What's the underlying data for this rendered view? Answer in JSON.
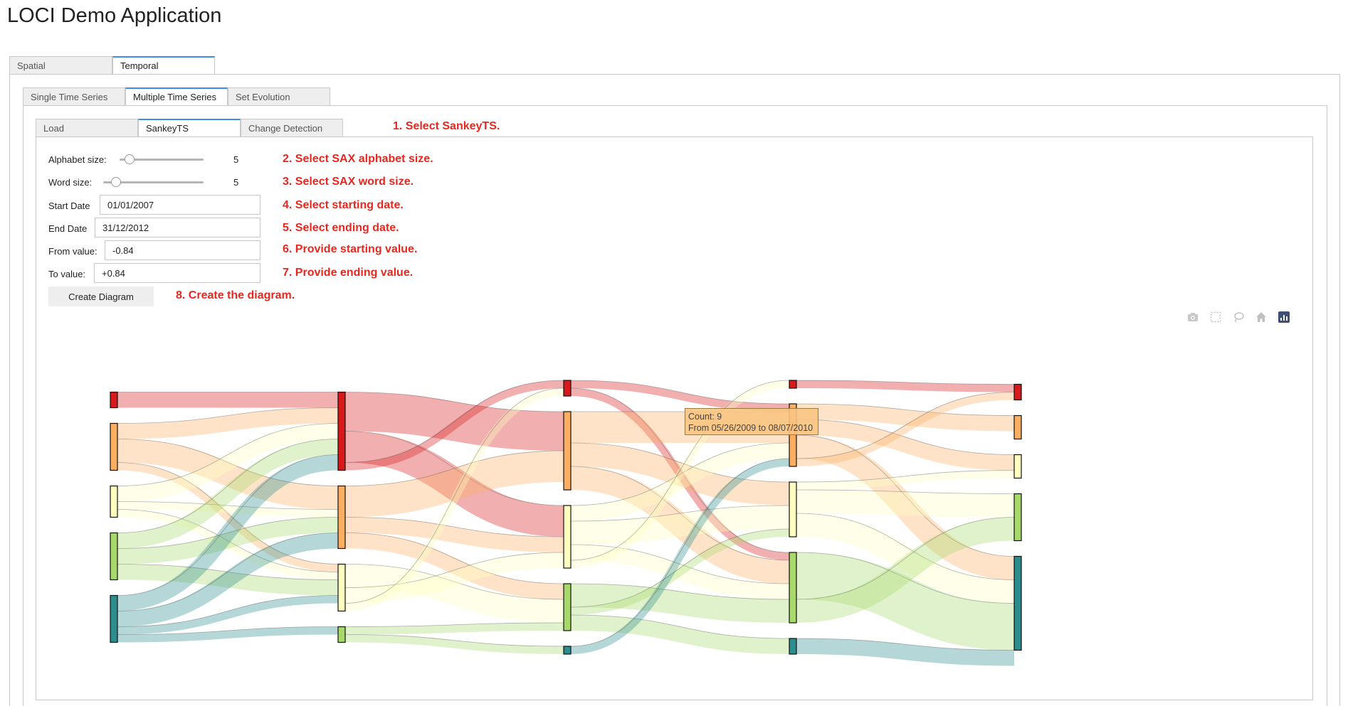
{
  "app": {
    "title": "LOCI Demo Application"
  },
  "top_tabs": [
    {
      "label": "Spatial",
      "active": false
    },
    {
      "label": "Temporal",
      "active": true
    }
  ],
  "temporal_tabs": [
    {
      "label": "Single Time Series",
      "active": false
    },
    {
      "label": "Multiple Time Series",
      "active": true
    },
    {
      "label": "Set Evolution",
      "active": false
    }
  ],
  "mts_tabs": [
    {
      "label": "Load",
      "active": false
    },
    {
      "label": "SankeyTS",
      "active": true
    },
    {
      "label": "Change Detection",
      "active": false
    }
  ],
  "form": {
    "alphabet_label": "Alphabet size:",
    "alphabet_value": "5",
    "word_label": "Word size:",
    "word_value": "5",
    "start_label": "Start Date",
    "start_value": "01/01/2007",
    "end_label": "End Date",
    "end_value": "31/12/2012",
    "from_label": "From value:",
    "from_value": "-0.84",
    "to_label": "To value:",
    "to_value": "+0.84",
    "create_button": "Create Diagram"
  },
  "annotations": {
    "a1": "1. Select SankeyTS.",
    "a2": "2. Select SAX alphabet size.",
    "a3": "3. Select SAX word size.",
    "a4": "4. Select starting date.",
    "a5": "5. Select ending date.",
    "a6": "6. Provide starting value.",
    "a7": "7. Provide ending value.",
    "a8": "8. Create the diagram."
  },
  "modebar": {
    "icons": [
      "camera-icon",
      "box-select-icon",
      "lasso-select-icon",
      "home-icon",
      "plotly-logo-icon"
    ]
  },
  "tooltip": {
    "line1": "Count: 9",
    "line2": "From 05/26/2009 to 08/07/2010"
  },
  "colors": {
    "a": "#d7191c",
    "b": "#fdae61",
    "c": "#ffffbf",
    "d": "#a6d96a",
    "e": "#2b8d8d",
    "accent_tab": "#3a8ee6",
    "annotation": "#e8281e"
  },
  "chart_data": {
    "type": "sankey",
    "symbols": [
      "a",
      "b",
      "c",
      "d",
      "e"
    ],
    "stages": 5,
    "nodes": [
      {
        "id": "0a",
        "stage": 0,
        "symbol": "a",
        "count": 2
      },
      {
        "id": "0b",
        "stage": 0,
        "symbol": "b",
        "count": 6
      },
      {
        "id": "0c",
        "stage": 0,
        "symbol": "c",
        "count": 4
      },
      {
        "id": "0d",
        "stage": 0,
        "symbol": "d",
        "count": 6
      },
      {
        "id": "0e",
        "stage": 0,
        "symbol": "e",
        "count": 6
      },
      {
        "id": "1a",
        "stage": 1,
        "symbol": "a",
        "count": 10
      },
      {
        "id": "1b",
        "stage": 1,
        "symbol": "b",
        "count": 8
      },
      {
        "id": "1c",
        "stage": 1,
        "symbol": "c",
        "count": 6
      },
      {
        "id": "1d",
        "stage": 1,
        "symbol": "d",
        "count": 2
      },
      {
        "id": "2a",
        "stage": 2,
        "symbol": "a",
        "count": 2
      },
      {
        "id": "2b",
        "stage": 2,
        "symbol": "b",
        "count": 10
      },
      {
        "id": "2c",
        "stage": 2,
        "symbol": "c",
        "count": 8
      },
      {
        "id": "2d",
        "stage": 2,
        "symbol": "d",
        "count": 6
      },
      {
        "id": "2e",
        "stage": 2,
        "symbol": "e",
        "count": 1
      },
      {
        "id": "3a",
        "stage": 3,
        "symbol": "a",
        "count": 1
      },
      {
        "id": "3b",
        "stage": 3,
        "symbol": "b",
        "count": 8
      },
      {
        "id": "3c",
        "stage": 3,
        "symbol": "c",
        "count": 7
      },
      {
        "id": "3d",
        "stage": 3,
        "symbol": "d",
        "count": 9
      },
      {
        "id": "3e",
        "stage": 3,
        "symbol": "e",
        "count": 2
      },
      {
        "id": "4a",
        "stage": 4,
        "symbol": "a",
        "count": 2
      },
      {
        "id": "4b",
        "stage": 4,
        "symbol": "b",
        "count": 3
      },
      {
        "id": "4c",
        "stage": 4,
        "symbol": "c",
        "count": 3
      },
      {
        "id": "4d",
        "stage": 4,
        "symbol": "d",
        "count": 6
      },
      {
        "id": "4e",
        "stage": 4,
        "symbol": "e",
        "count": 12
      }
    ],
    "links": [
      {
        "source": "0a",
        "target": "1a",
        "value": 2
      },
      {
        "source": "0b",
        "target": "1a",
        "value": 2
      },
      {
        "source": "0b",
        "target": "1b",
        "value": 3
      },
      {
        "source": "0b",
        "target": "1c",
        "value": 1
      },
      {
        "source": "0c",
        "target": "1a",
        "value": 2
      },
      {
        "source": "0c",
        "target": "1b",
        "value": 1
      },
      {
        "source": "0c",
        "target": "1c",
        "value": 1
      },
      {
        "source": "0d",
        "target": "1a",
        "value": 2
      },
      {
        "source": "0d",
        "target": "1b",
        "value": 2
      },
      {
        "source": "0d",
        "target": "1c",
        "value": 2
      },
      {
        "source": "0e",
        "target": "1a",
        "value": 2
      },
      {
        "source": "0e",
        "target": "1b",
        "value": 2
      },
      {
        "source": "0e",
        "target": "1c",
        "value": 1
      },
      {
        "source": "0e",
        "target": "1d",
        "value": 1
      },
      {
        "source": "1a",
        "target": "2b",
        "value": 5
      },
      {
        "source": "1a",
        "target": "2c",
        "value": 4
      },
      {
        "source": "1a",
        "target": "2a",
        "value": 1
      },
      {
        "source": "1b",
        "target": "2b",
        "value": 4
      },
      {
        "source": "1b",
        "target": "2c",
        "value": 2
      },
      {
        "source": "1b",
        "target": "2d",
        "value": 2
      },
      {
        "source": "1c",
        "target": "2d",
        "value": 3
      },
      {
        "source": "1c",
        "target": "2c",
        "value": 2
      },
      {
        "source": "1c",
        "target": "2a",
        "value": 1
      },
      {
        "source": "1d",
        "target": "2d",
        "value": 1
      },
      {
        "source": "1d",
        "target": "2e",
        "value": 1
      },
      {
        "source": "2a",
        "target": "3b",
        "value": 1
      },
      {
        "source": "2a",
        "target": "3d",
        "value": 1
      },
      {
        "source": "2b",
        "target": "3b",
        "value": 4
      },
      {
        "source": "2b",
        "target": "3c",
        "value": 3
      },
      {
        "source": "2b",
        "target": "3d",
        "value": 3
      },
      {
        "source": "2c",
        "target": "3b",
        "value": 2
      },
      {
        "source": "2c",
        "target": "3c",
        "value": 3
      },
      {
        "source": "2c",
        "target": "3d",
        "value": 2
      },
      {
        "source": "2c",
        "target": "3a",
        "value": 1
      },
      {
        "source": "2d",
        "target": "3d",
        "value": 3
      },
      {
        "source": "2d",
        "target": "3c",
        "value": 1
      },
      {
        "source": "2d",
        "target": "3e",
        "value": 2
      },
      {
        "source": "2e",
        "target": "3b",
        "value": 1
      },
      {
        "source": "3a",
        "target": "4a",
        "value": 1
      },
      {
        "source": "3b",
        "target": "4b",
        "value": 2
      },
      {
        "source": "3b",
        "target": "4c",
        "value": 2
      },
      {
        "source": "3b",
        "target": "4e",
        "value": 3
      },
      {
        "source": "3b",
        "target": "4a",
        "value": 1
      },
      {
        "source": "3c",
        "target": "4c",
        "value": 1
      },
      {
        "source": "3c",
        "target": "4d",
        "value": 3
      },
      {
        "source": "3c",
        "target": "4e",
        "value": 3
      },
      {
        "source": "3d",
        "target": "4e",
        "value": 6
      },
      {
        "source": "3d",
        "target": "4d",
        "value": 3
      },
      {
        "source": "3e",
        "target": "4e",
        "value": 2
      }
    ]
  }
}
